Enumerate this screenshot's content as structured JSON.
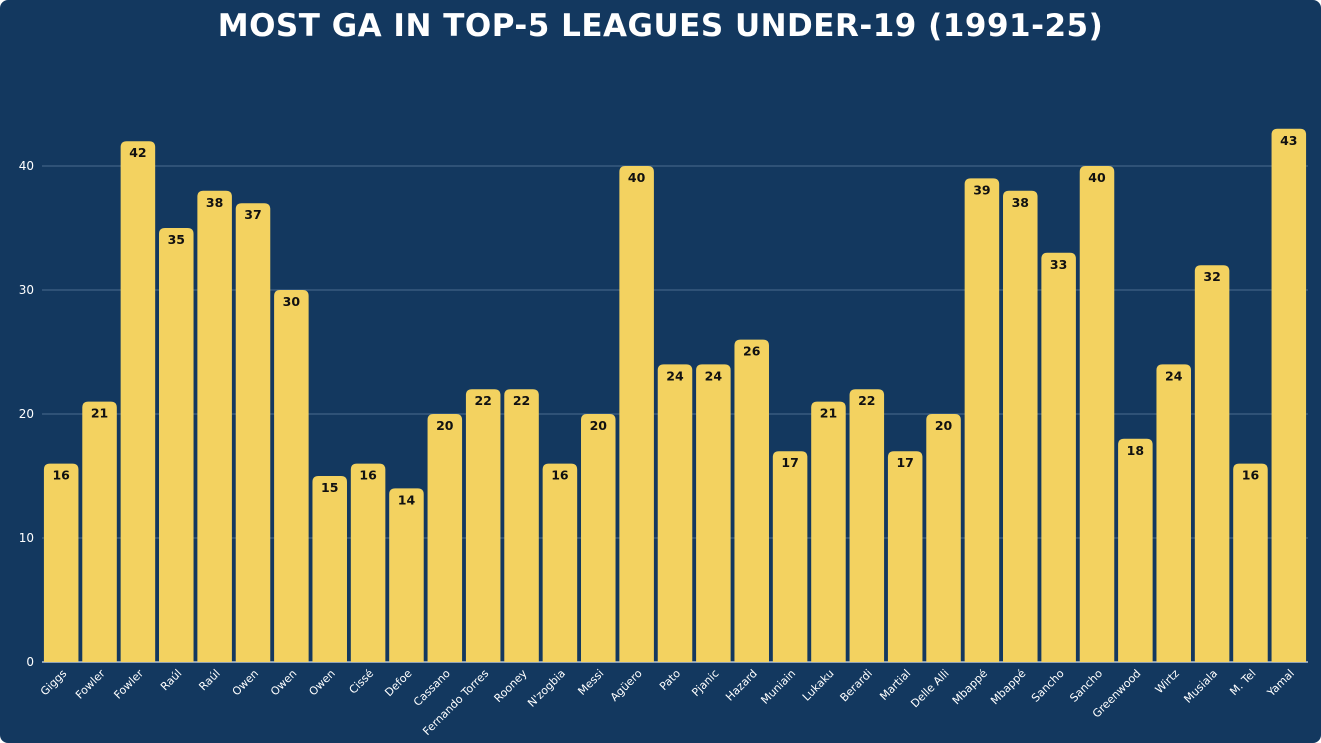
{
  "chart_data": {
    "type": "bar",
    "title": "MOST GA IN TOP-5 LEAGUES UNDER-19 (1991-25)",
    "xlabel": "",
    "ylabel": "",
    "ylim": [
      0,
      45
    ],
    "yticks": [
      0,
      10,
      20,
      30,
      40
    ],
    "grid": true,
    "categories": [
      "Giggs",
      "Fowler",
      "Fowler",
      "Raúl",
      "Raúl",
      "Owen",
      "Owen",
      "Owen",
      "Cissé",
      "Defoe",
      "Cassano",
      "Fernando Torres",
      "Rooney",
      "N'zogbia",
      "Messi",
      "Agüero",
      "Pato",
      "Pjanic",
      "Hazard",
      "Muniain",
      "Lukaku",
      "Berardi",
      "Martial",
      "Delle Alli",
      "Mbappé",
      "Mbappé",
      "Sancho",
      "Sancho",
      "Greenwood",
      "Wirtz",
      "Musiala",
      "M. Tel",
      "Yamal"
    ],
    "values": [
      16,
      21,
      42,
      35,
      38,
      37,
      30,
      15,
      16,
      14,
      20,
      22,
      22,
      16,
      20,
      40,
      24,
      24,
      26,
      17,
      21,
      22,
      17,
      20,
      39,
      38,
      33,
      40,
      18,
      24,
      32,
      16,
      43
    ],
    "colors": {
      "background": "#13385f",
      "bar": "#f3d260",
      "grid": "#4b6d8f",
      "text": "#ffffff",
      "label": "#111111"
    }
  }
}
